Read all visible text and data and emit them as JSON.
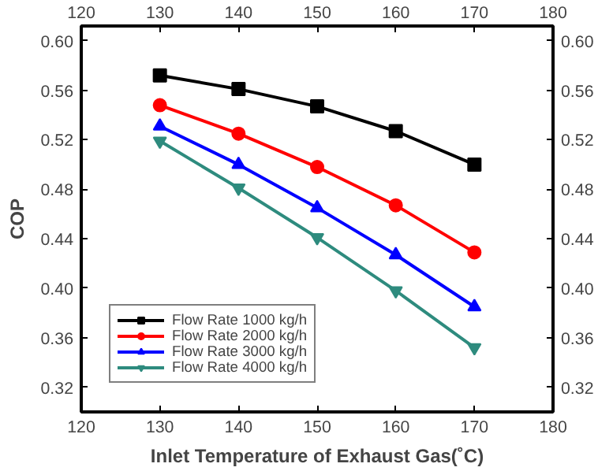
{
  "chart_data": {
    "type": "line",
    "xlabel": "Inlet Temperature of Exhaust Gas(˚C)",
    "ylabel": "COP",
    "x": [
      130,
      140,
      150,
      160,
      170
    ],
    "series": [
      {
        "name": "Flow Rate 1000 kg/h",
        "color": "#000000",
        "marker": "square",
        "values": [
          0.572,
          0.561,
          0.547,
          0.527,
          0.5
        ]
      },
      {
        "name": "Flow Rate 2000 kg/h",
        "color": "#ff0000",
        "marker": "circle",
        "values": [
          0.548,
          0.525,
          0.498,
          0.467,
          0.429
        ]
      },
      {
        "name": "Flow Rate 3000 kg/h",
        "color": "#0000ff",
        "marker": "triangle",
        "values": [
          0.531,
          0.5,
          0.465,
          0.427,
          0.385
        ]
      },
      {
        "name": "Flow Rate 4000 kg/h",
        "color": "#2e8b7e",
        "marker": "triangle",
        "values": [
          0.519,
          0.481,
          0.441,
          0.398,
          0.352
        ]
      }
    ],
    "xlim": [
      120,
      180
    ],
    "xticks": [
      120,
      130,
      140,
      150,
      160,
      170,
      180
    ],
    "ylim": [
      0.3,
      0.612
    ],
    "yticks": [
      {
        "value": 0.32,
        "label": "0.32"
      },
      {
        "value": 0.36,
        "label": "0.36"
      },
      {
        "value": 0.4,
        "label": "0.40"
      },
      {
        "value": 0.44,
        "label": "0.44"
      },
      {
        "value": 0.48,
        "label": "0.48"
      },
      {
        "value": 0.52,
        "label": "0.52"
      },
      {
        "value": 0.56,
        "label": "0.56"
      },
      {
        "value": 0.6,
        "label": "0.60"
      }
    ],
    "y2lim": [
      0.3,
      0.612
    ],
    "y2ticks": [
      {
        "value": 0.32,
        "label": "0.32"
      },
      {
        "value": 0.36,
        "label": "0.36"
      },
      {
        "value": 0.4,
        "label": "0.40"
      },
      {
        "value": 0.44,
        "label": "0.44"
      },
      {
        "value": 0.48,
        "label": "0.48"
      },
      {
        "value": 0.52,
        "label": "0.52"
      },
      {
        "value": 0.56,
        "label": "0.56"
      },
      {
        "value": 0.6,
        "label": "0.60"
      }
    ],
    "x2lim": [
      120,
      180
    ],
    "x2ticks": [
      120,
      130,
      140,
      150,
      160,
      170,
      180
    ],
    "grid": false,
    "legend": "bottom left",
    "line_style": "solid"
  }
}
